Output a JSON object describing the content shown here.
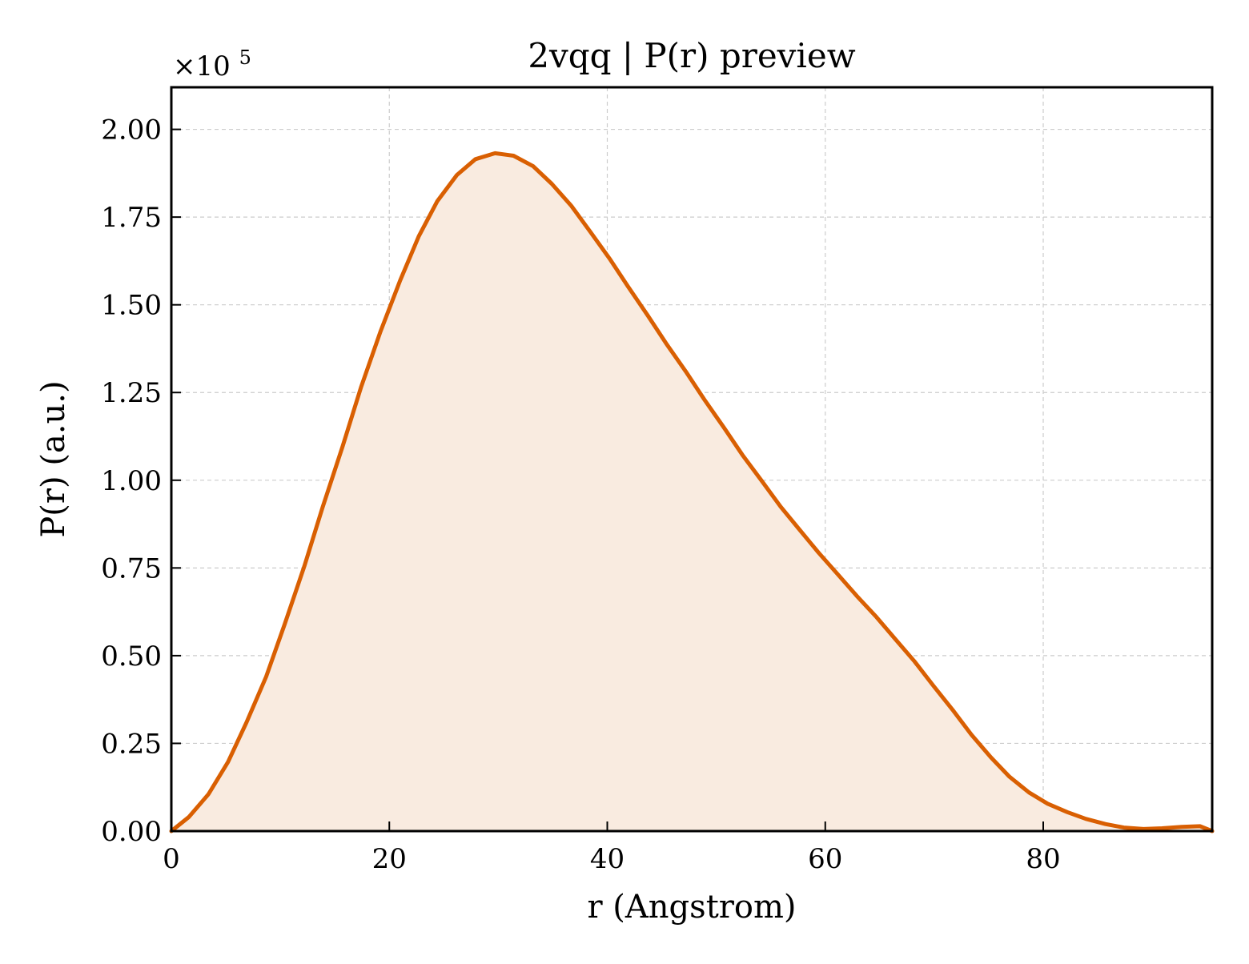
{
  "chart_data": {
    "type": "area",
    "title": "2vqq | P(r) preview",
    "xlabel": "r (Angstrom)",
    "ylabel": "P(r) (a.u.)",
    "y_multiplier": {
      "base": "×10",
      "exponent": "5"
    },
    "xlim": [
      0,
      95.5
    ],
    "ylim": [
      0,
      2.12
    ],
    "x_ticks": [
      0,
      20,
      40,
      60,
      80
    ],
    "x_tick_labels": [
      "0",
      "20",
      "40",
      "60",
      "80"
    ],
    "y_ticks": [
      0,
      0.25,
      0.5,
      0.75,
      1.0,
      1.25,
      1.5,
      1.75,
      2.0
    ],
    "y_tick_labels": [
      "0.00",
      "0.25",
      "0.50",
      "0.75",
      "1.00",
      "1.25",
      "1.50",
      "1.75",
      "2.00"
    ],
    "grid": true,
    "colors": {
      "line": "#d95f02",
      "fill": "#f9ebe0"
    },
    "series": [
      {
        "x": [
          0,
          1.6,
          3.4,
          5.2,
          6.9,
          8.7,
          10.4,
          12.2,
          13.9,
          15.7,
          17.4,
          19.2,
          21.0,
          22.7,
          24.4,
          26.2,
          27.9,
          29.7,
          31.4,
          33.2,
          34.9,
          36.7,
          38.4,
          40.2,
          41.9,
          43.7,
          45.4,
          47.2,
          48.9,
          50.7,
          52.4,
          54.2,
          55.9,
          57.7,
          59.4,
          61.2,
          62.9,
          64.7,
          66.4,
          68.2,
          69.9,
          71.7,
          73.4,
          75.2,
          76.9,
          78.7,
          80.4,
          82.2,
          83.9,
          85.7,
          87.4,
          89.2,
          90.9,
          92.7,
          94.4,
          95.5
        ],
        "y": [
          0.0,
          0.04,
          0.105,
          0.197,
          0.31,
          0.44,
          0.59,
          0.755,
          0.925,
          1.095,
          1.265,
          1.425,
          1.57,
          1.695,
          1.795,
          1.87,
          1.915,
          1.932,
          1.925,
          1.895,
          1.845,
          1.782,
          1.71,
          1.632,
          1.552,
          1.47,
          1.39,
          1.31,
          1.23,
          1.15,
          1.072,
          0.997,
          0.925,
          0.857,
          0.793,
          0.73,
          0.67,
          0.61,
          0.548,
          0.483,
          0.415,
          0.345,
          0.275,
          0.21,
          0.155,
          0.11,
          0.078,
          0.054,
          0.035,
          0.02,
          0.01,
          0.006,
          0.008,
          0.012,
          0.014,
          0.0
        ]
      }
    ]
  }
}
